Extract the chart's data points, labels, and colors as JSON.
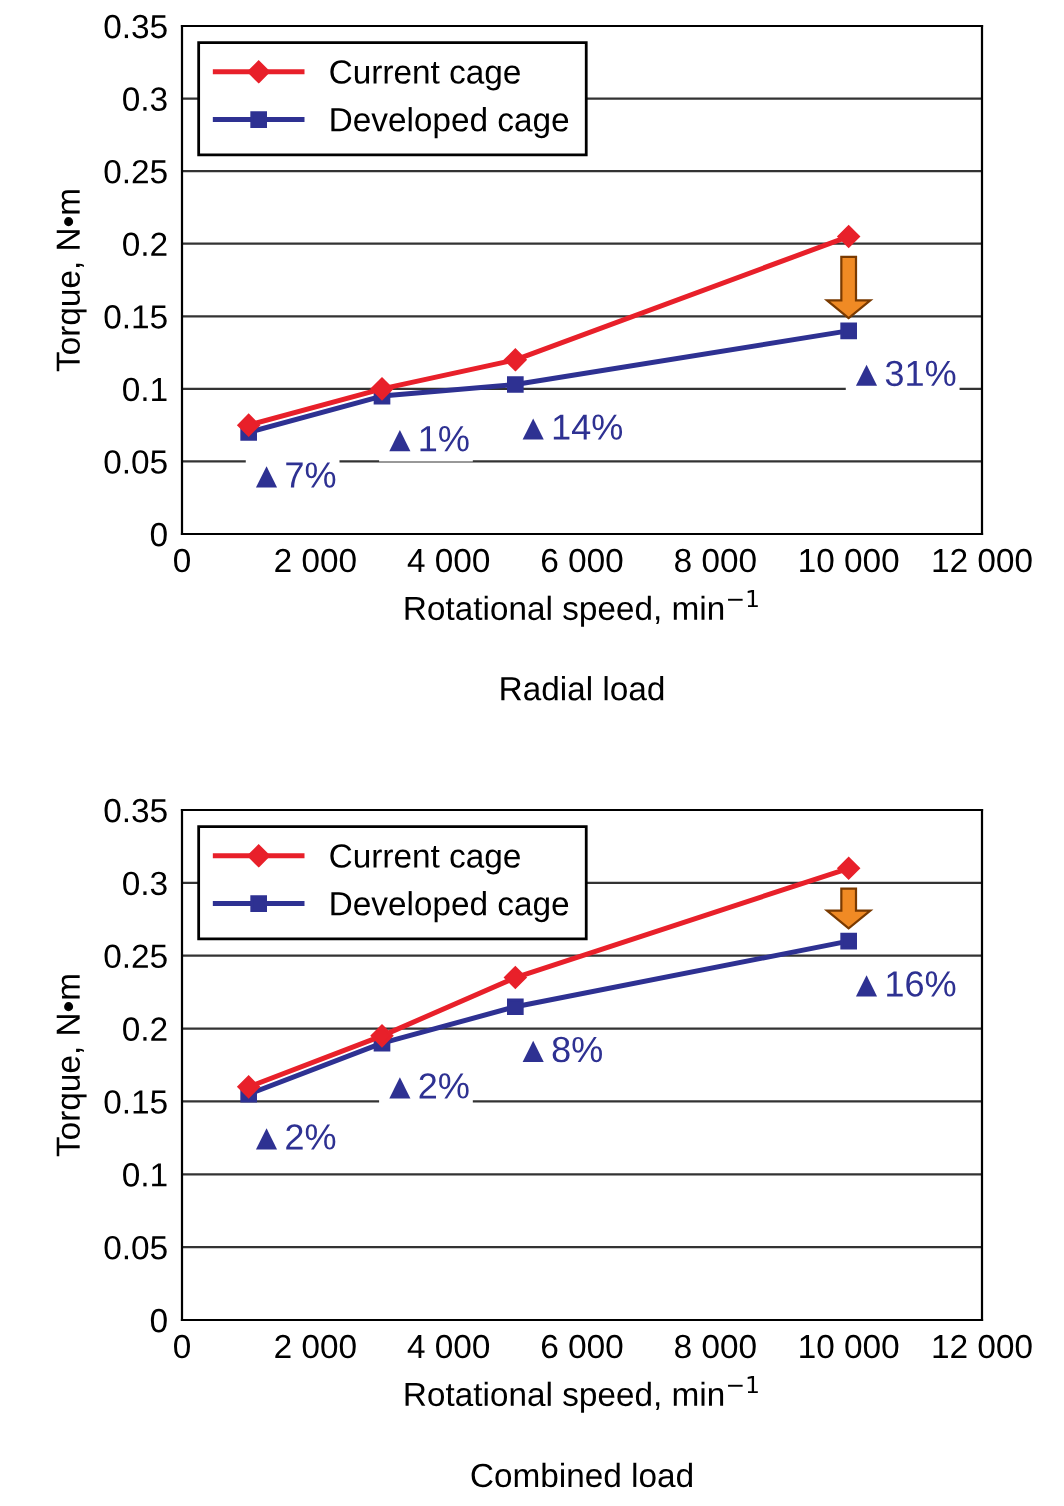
{
  "chart_data": [
    {
      "type": "line",
      "title": "Radial load",
      "xlabel": "Rotational speed, min$^{−1}$",
      "ylabel": "Torque, N•m",
      "x": [
        1000,
        3000,
        5000,
        10000
      ],
      "series": [
        {
          "name": "Current cage",
          "color": "#e8202a",
          "marker": "diamond",
          "values": [
            0.075,
            0.1,
            0.12,
            0.205
          ]
        },
        {
          "name": "Developed cage",
          "color": "#2e3192",
          "marker": "square",
          "values": [
            0.07,
            0.095,
            0.103,
            0.14
          ]
        }
      ],
      "xlim": [
        0,
        12000
      ],
      "xticks": [
        0,
        {
          "value": 2000,
          "label": "2 000"
        },
        {
          "value": 4000,
          "label": "4 000"
        },
        {
          "value": 6000,
          "label": "6 000"
        },
        {
          "value": 8000,
          "label": "8 000"
        },
        {
          "value": 10000,
          "label": "10 000"
        },
        {
          "value": 12000,
          "label": "12 000"
        }
      ],
      "ylim": [
        0,
        0.35
      ],
      "yticks": [
        0,
        0.05,
        0.1,
        0.15,
        0.2,
        0.25,
        0.3,
        0.35
      ],
      "grid": "y",
      "legend": "top left",
      "annotations": [
        "▲7%",
        "▲1%",
        "▲14%",
        "▲31%"
      ]
    },
    {
      "type": "line",
      "title": "Combined load",
      "xlabel": "Rotational speed, min$^{−1}$",
      "ylabel": "Torque, N•m",
      "x": [
        1000,
        3000,
        5000,
        10000
      ],
      "series": [
        {
          "name": "Current cage",
          "color": "#e8202a",
          "marker": "diamond",
          "values": [
            0.16,
            0.195,
            0.235,
            0.31
          ]
        },
        {
          "name": "Developed cage",
          "color": "#2e3192",
          "marker": "square",
          "values": [
            0.155,
            0.19,
            0.215,
            0.26
          ]
        }
      ],
      "xlim": [
        0,
        12000
      ],
      "xticks": [
        0,
        {
          "value": 2000,
          "label": "2 000"
        },
        {
          "value": 4000,
          "label": "4 000"
        },
        {
          "value": 6000,
          "label": "6 000"
        },
        {
          "value": 8000,
          "label": "8 000"
        },
        {
          "value": 10000,
          "label": "10 000"
        },
        {
          "value": 12000,
          "label": "12 000"
        }
      ],
      "ylim": [
        0,
        0.35
      ],
      "yticks": [
        0,
        0.05,
        0.1,
        0.15,
        0.2,
        0.25,
        0.3,
        0.35
      ],
      "grid": "y",
      "legend": "top left",
      "annotations": [
        "▲2%",
        "▲2%",
        "▲8%",
        "▲16%"
      ]
    }
  ]
}
